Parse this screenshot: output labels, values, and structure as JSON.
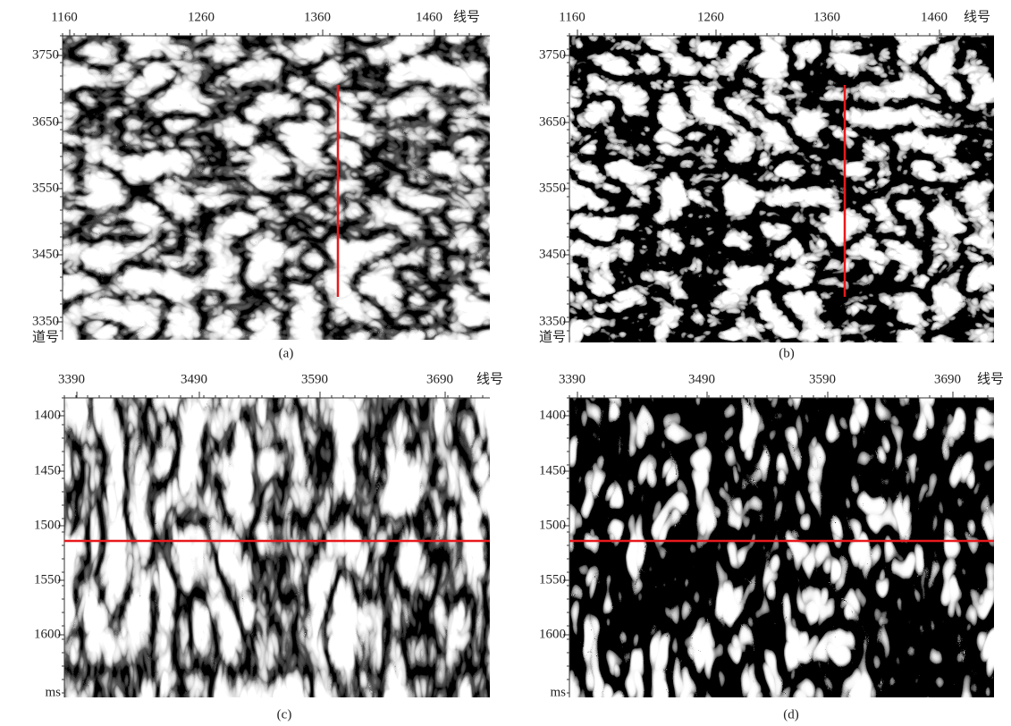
{
  "panels": [
    {
      "caption": "(a)",
      "x_axis_label": "线号",
      "y_axis_label": "道号",
      "x_ticks": [
        1160,
        1260,
        1360,
        1460
      ],
      "y_ticks": [
        3750,
        3650,
        3550,
        3450,
        3350
      ]
    },
    {
      "caption": "(b)",
      "x_axis_label": "线号",
      "y_axis_label": "道号",
      "x_ticks": [
        1160,
        1260,
        1360,
        1460
      ],
      "y_ticks": [
        3750,
        3650,
        3550,
        3450,
        3350
      ]
    },
    {
      "caption": "(c)",
      "x_axis_label": "线号",
      "y_axis_label": "ms",
      "x_ticks": [
        3390,
        3490,
        3590,
        3690
      ],
      "y_ticks": [
        1400,
        1450,
        1500,
        1550,
        1600
      ]
    },
    {
      "caption": "(d)",
      "x_axis_label": "线号",
      "y_axis_label": "ms",
      "x_ticks": [
        3390,
        3490,
        3590,
        3690
      ],
      "y_ticks": [
        1400,
        1450,
        1500,
        1550,
        1600
      ]
    }
  ]
}
